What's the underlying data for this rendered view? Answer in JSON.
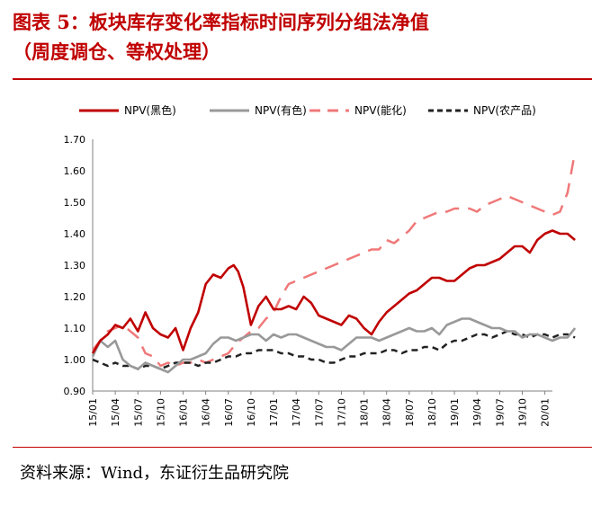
{
  "figure": {
    "title_line1": "图表 5：板块库存变化率指标时间序列分组法净值",
    "title_line2": "（周度调仓、等权处理）",
    "source": "资料来源：Wind，东证衍生品研究院"
  },
  "colors": {
    "title": "#c00000",
    "heise": "#c00000",
    "youse": "#999999",
    "nenghua": "#f07878",
    "nongchanpin": "#222222",
    "axis": "#808080"
  },
  "chart_data": {
    "type": "line",
    "title": "",
    "xlabel": "",
    "ylabel": "",
    "ylim": [
      0.9,
      1.7
    ],
    "yticks": [
      "1.70",
      "1.60",
      "1.50",
      "1.40",
      "1.30",
      "1.20",
      "1.10",
      "1.00",
      "0.90"
    ],
    "ytick_values": [
      1.7,
      1.6,
      1.5,
      1.4,
      1.3,
      1.2,
      1.1,
      1.0,
      0.9
    ],
    "xlim": [
      0,
      61
    ],
    "xticks": [
      "15/01",
      "15/04",
      "15/07",
      "15/10",
      "16/01",
      "16/04",
      "16/07",
      "16/10",
      "17/01",
      "17/04",
      "17/07",
      "17/10",
      "18/01",
      "18/04",
      "18/07",
      "18/10",
      "19/01",
      "19/04",
      "19/07",
      "19/10",
      "20/01"
    ],
    "xtick_positions": [
      0,
      3,
      6,
      9,
      12,
      15,
      18,
      21,
      24,
      27,
      30,
      33,
      36,
      39,
      42,
      45,
      48,
      51,
      54,
      57,
      60
    ],
    "legend_position": "top",
    "series": [
      {
        "name": "NPV(黑色)",
        "style": "solid",
        "color_key": "heise",
        "x": [
          0,
          1,
          2,
          3,
          4,
          5,
          6,
          7,
          8,
          9,
          10,
          11,
          12,
          13,
          14,
          15,
          16,
          17,
          18,
          18.7,
          19.3,
          20,
          21,
          22,
          23,
          24,
          25,
          26,
          27,
          28,
          29,
          30,
          31,
          32,
          33,
          34,
          35,
          36,
          37,
          38,
          39,
          40,
          41,
          42,
          43,
          44,
          45,
          46,
          47,
          48,
          49,
          50,
          51,
          52,
          53,
          54,
          55,
          56,
          57,
          58,
          59,
          60,
          61,
          62,
          63,
          64
        ],
        "values": [
          1.02,
          1.06,
          1.08,
          1.11,
          1.1,
          1.13,
          1.09,
          1.15,
          1.1,
          1.08,
          1.07,
          1.1,
          1.03,
          1.1,
          1.15,
          1.24,
          1.27,
          1.26,
          1.29,
          1.3,
          1.28,
          1.23,
          1.11,
          1.17,
          1.2,
          1.16,
          1.16,
          1.17,
          1.16,
          1.2,
          1.18,
          1.14,
          1.13,
          1.12,
          1.11,
          1.14,
          1.13,
          1.1,
          1.08,
          1.12,
          1.15,
          1.17,
          1.19,
          1.21,
          1.22,
          1.24,
          1.26,
          1.26,
          1.25,
          1.25,
          1.27,
          1.29,
          1.3,
          1.3,
          1.31,
          1.32,
          1.34,
          1.36,
          1.36,
          1.34,
          1.38,
          1.4,
          1.41,
          1.4,
          1.4,
          1.38
        ]
      },
      {
        "name": "NPV(有色)",
        "style": "solid",
        "color_key": "youse",
        "x": [
          0,
          1,
          2,
          3,
          4,
          5,
          6,
          7,
          8,
          9,
          10,
          11,
          12,
          13,
          14,
          15,
          16,
          17,
          18,
          19,
          20,
          21,
          22,
          23,
          24,
          25,
          26,
          27,
          28,
          29,
          30,
          31,
          32,
          33,
          34,
          35,
          36,
          37,
          38,
          39,
          40,
          41,
          42,
          43,
          44,
          45,
          46,
          47,
          48,
          49,
          50,
          51,
          52,
          53,
          54,
          55,
          56,
          57,
          58,
          59,
          60,
          61,
          62,
          63,
          64
        ],
        "values": [
          1.01,
          1.06,
          1.04,
          1.06,
          1.0,
          0.98,
          0.97,
          0.99,
          0.98,
          0.97,
          0.96,
          0.98,
          1.0,
          1.0,
          1.01,
          1.02,
          1.05,
          1.07,
          1.07,
          1.06,
          1.07,
          1.08,
          1.08,
          1.06,
          1.08,
          1.07,
          1.08,
          1.08,
          1.07,
          1.06,
          1.05,
          1.04,
          1.04,
          1.03,
          1.05,
          1.07,
          1.07,
          1.07,
          1.06,
          1.07,
          1.08,
          1.09,
          1.1,
          1.09,
          1.09,
          1.1,
          1.08,
          1.11,
          1.12,
          1.13,
          1.13,
          1.12,
          1.11,
          1.1,
          1.1,
          1.09,
          1.09,
          1.07,
          1.08,
          1.08,
          1.07,
          1.06,
          1.07,
          1.07,
          1.1
        ]
      },
      {
        "name": "NPV(能化)",
        "style": "dashed",
        "color_key": "nenghua",
        "x": [
          0,
          1,
          2,
          3,
          4,
          5,
          6,
          7,
          8,
          9,
          10,
          11,
          12,
          13,
          14,
          15,
          16,
          17,
          18,
          19,
          20,
          21,
          22,
          23,
          24,
          25,
          26,
          27,
          28,
          29,
          30,
          31,
          32,
          33,
          34,
          35,
          36,
          37,
          38,
          39,
          40,
          41,
          42,
          43,
          44,
          45,
          46,
          47,
          48,
          49,
          50,
          51,
          52,
          53,
          54,
          55,
          56,
          57,
          58,
          59,
          60,
          61,
          62,
          63,
          64
        ],
        "values": [
          1.03,
          1.06,
          1.09,
          1.1,
          1.11,
          1.09,
          1.07,
          1.02,
          1.01,
          0.98,
          0.99,
          0.98,
          0.99,
          0.99,
          1.0,
          0.99,
          1.0,
          1.01,
          1.02,
          1.05,
          1.07,
          1.09,
          1.1,
          1.13,
          1.15,
          1.2,
          1.24,
          1.25,
          1.26,
          1.27,
          1.28,
          1.29,
          1.3,
          1.31,
          1.32,
          1.33,
          1.34,
          1.35,
          1.35,
          1.38,
          1.37,
          1.39,
          1.41,
          1.44,
          1.45,
          1.46,
          1.47,
          1.47,
          1.48,
          1.48,
          1.48,
          1.47,
          1.49,
          1.5,
          1.51,
          1.52,
          1.51,
          1.5,
          1.49,
          1.48,
          1.47,
          1.46,
          1.47,
          1.53,
          1.66
        ]
      },
      {
        "name": "NPV(农产品)",
        "style": "dashed",
        "color_key": "nongchanpin",
        "x": [
          0,
          1,
          2,
          3,
          4,
          5,
          6,
          7,
          8,
          9,
          10,
          11,
          12,
          13,
          14,
          15,
          16,
          17,
          18,
          19,
          20,
          21,
          22,
          23,
          24,
          25,
          26,
          27,
          28,
          29,
          30,
          31,
          32,
          33,
          34,
          35,
          36,
          37,
          38,
          39,
          40,
          41,
          42,
          43,
          44,
          45,
          46,
          47,
          48,
          49,
          50,
          51,
          52,
          53,
          54,
          55,
          56,
          57,
          58,
          59,
          60,
          61,
          62,
          63,
          64
        ],
        "values": [
          1.0,
          0.99,
          0.98,
          0.99,
          0.98,
          0.98,
          0.97,
          0.98,
          0.98,
          0.97,
          0.98,
          0.99,
          0.99,
          0.99,
          0.98,
          0.99,
          0.99,
          1.0,
          1.01,
          1.01,
          1.02,
          1.02,
          1.03,
          1.03,
          1.03,
          1.02,
          1.02,
          1.01,
          1.01,
          1.0,
          1.0,
          0.99,
          0.99,
          1.0,
          1.01,
          1.01,
          1.02,
          1.02,
          1.02,
          1.03,
          1.03,
          1.02,
          1.03,
          1.03,
          1.04,
          1.04,
          1.03,
          1.05,
          1.06,
          1.06,
          1.07,
          1.08,
          1.08,
          1.07,
          1.08,
          1.09,
          1.08,
          1.08,
          1.07,
          1.08,
          1.08,
          1.07,
          1.08,
          1.08,
          1.07
        ]
      }
    ]
  }
}
